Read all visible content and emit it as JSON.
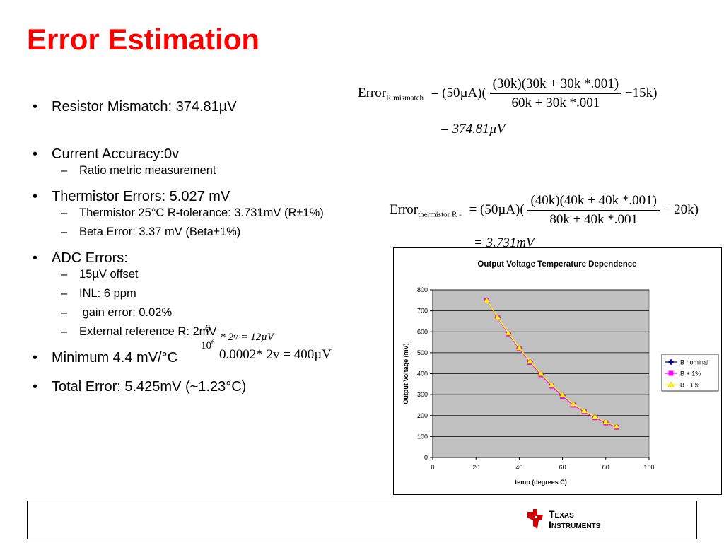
{
  "slide": {
    "title": "Error Estimation",
    "bullets": {
      "resistor_mismatch": "Resistor Mismatch: 374.81µV",
      "current_accuracy": "Current Accuracy:0v",
      "ratio_metric": "Ratio metric measurement",
      "thermistor_errors": "Thermistor Errors: 5.027 mV",
      "thermistor_25c": "Thermistor 25°C R-tolerance: 3.731mV (R±1%)",
      "beta_error": "Beta Error: 3.37 mV (Beta±1%)",
      "adc_errors": "ADC Errors:",
      "offset": "15µV offset",
      "inl": "INL: 6 ppm",
      "gain_error": " gain error: 0.02%",
      "ext_ref": "External reference R: 2mV",
      "minimum": "Minimum 4.4 mV/°C",
      "total_error": "Total Error: 5.425mV (~1.23°C)"
    },
    "formulas": {
      "mismatch_label": "Error",
      "mismatch_sub": "R mismatch",
      "mismatch_lhs": "= (50µA)(",
      "mismatch_num": "(30k)(30k + 30k *.001)",
      "mismatch_den": "60k + 30k *.001",
      "mismatch_rhs": "−15k)",
      "mismatch_result": "= 374.81µV",
      "therm_label": "Error",
      "therm_sub": "thermistor R -",
      "therm_lhs": "= (50µA)(",
      "therm_num": "(40k)(40k + 40k *.001)",
      "therm_den": "80k + 40k *.001",
      "therm_rhs": "− 20k)",
      "therm_result": "= 3.731mV",
      "inl_num": "6",
      "inl_den": "10",
      "inl_den_exp": "6",
      "inl_rhs": "* 2v = 12µV",
      "gain_formula": "0.0002* 2v = 400µV"
    },
    "logo": {
      "line1": "Texas",
      "line2": "Instruments",
      "color": "#cc0000"
    }
  },
  "chart_data": {
    "type": "line",
    "title": "Output Voltage Temperature Dependence",
    "xlabel": "temp (degrees C)",
    "ylabel": "Output Voltage (mV)",
    "xlim": [
      0,
      100
    ],
    "ylim": [
      0,
      800
    ],
    "xticks": [
      0,
      20,
      40,
      60,
      80,
      100
    ],
    "yticks": [
      0,
      100,
      200,
      300,
      400,
      500,
      600,
      700,
      800
    ],
    "grid": "horizontal",
    "legend_position": "right",
    "plot_bg": "#c0c0c0",
    "x": [
      25,
      30,
      35,
      40,
      45,
      50,
      55,
      60,
      65,
      70,
      75,
      80,
      85
    ],
    "series": [
      {
        "name": "B nominal",
        "color": "#000080",
        "marker": "diamond",
        "values": [
          750,
          668,
          592,
          521,
          457,
          398,
          344,
          295,
          252,
          220,
          192,
          167,
          146
        ]
      },
      {
        "name": "B + 1%",
        "color": "#ff00ff",
        "marker": "square",
        "values": [
          750,
          667,
          590,
          519,
          454,
          395,
          341,
          292,
          250,
          218,
          190,
          165,
          144
        ]
      },
      {
        "name": "B - 1%",
        "color": "#ffff00",
        "marker": "triangle",
        "values": [
          750,
          669,
          594,
          523,
          459,
          400,
          347,
          298,
          255,
          222,
          194,
          169,
          148
        ]
      }
    ]
  }
}
